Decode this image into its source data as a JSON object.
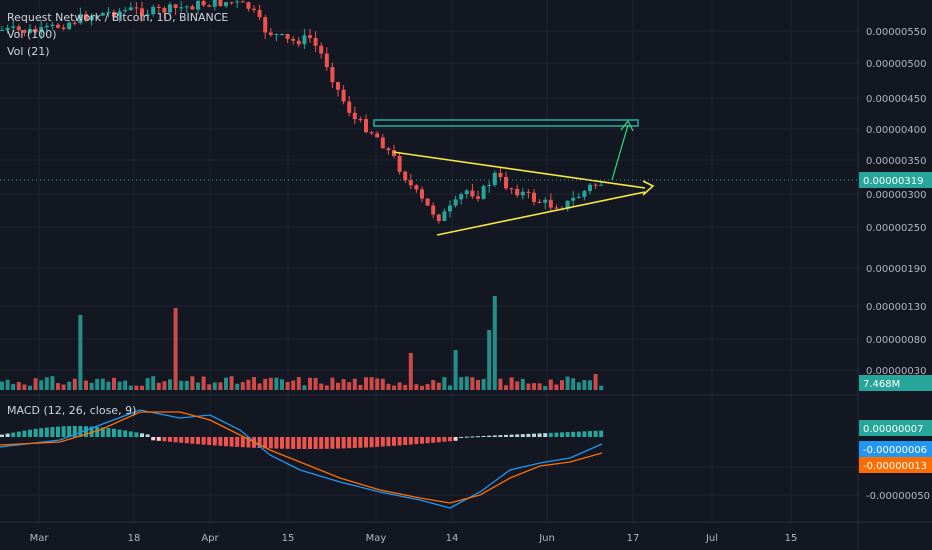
{
  "legend": {
    "symbol": "Request Network / Bitcoin, 1D, BINANCE",
    "vol_ma": "Vol (100)",
    "vol": "Vol (21)",
    "macd": "MACD (12, 26, close, 9)"
  },
  "colors": {
    "background": "#131722",
    "grid": "#1e2330",
    "axis_text": "#b2b5be",
    "up": "#26a69a",
    "down": "#ef5350",
    "pattern": "#f5e642",
    "resistance": "#26a69a",
    "macd_line": "#2196f3",
    "signal_line": "#ff6d00",
    "hist_pos_strong": "#26a69a",
    "hist_pos_weak": "#b2dfdb",
    "hist_neg_strong": "#ef5350",
    "hist_neg_weak": "#ffcdd2"
  },
  "chart_data": [
    {
      "type": "candlestick",
      "title": "Request Network / Bitcoin, 1D, BINANCE",
      "x_ticks": [
        "Mar",
        "18",
        "Apr",
        "15",
        "May",
        "14",
        "Jun",
        "17",
        "Jul",
        "15"
      ],
      "y_ticks": [
        "0.00000550",
        "0.00000500",
        "0.00000450",
        "0.00000400",
        "0.00000350",
        "0.00000300",
        "0.00000250"
      ],
      "last_price": "0.00000319",
      "series": [
        {
          "date": "2018-06-11",
          "close": 3.19e-06
        }
      ],
      "ylim": [
        2.2e-06,
        5.8e-06
      ],
      "grid": true,
      "annotations": [
        "symmetrical triangle (yellow trendlines)",
        "horizontal resistance near 0.00000410",
        "breakout arrows"
      ]
    },
    {
      "type": "bar",
      "title": "Vol (21)",
      "y_ticks": [
        "0.00000190",
        "0.00000130",
        "0.00000080",
        "0.00000030"
      ],
      "last_value": "7.468M",
      "grid": true
    },
    {
      "type": "line",
      "title": "MACD (12, 26, close, 9)",
      "y_ticks": [
        "-0.00000050"
      ],
      "series_labels": [
        "0.00000007",
        "-0.00000006",
        "-0.00000013"
      ],
      "grid": true
    }
  ]
}
